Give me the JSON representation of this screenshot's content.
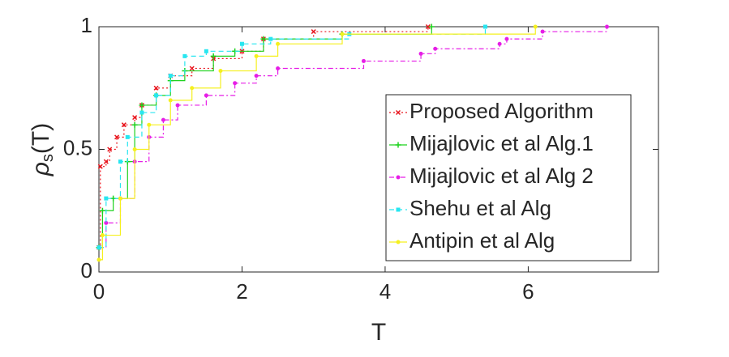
{
  "chart_data": {
    "type": "line",
    "step": true,
    "xlabel": "T",
    "ylabel": "ρ",
    "ylabel_sub": "s",
    "ylabel_tail": "(T)",
    "xlim": [
      0,
      7.82
    ],
    "ylim": [
      0,
      1
    ],
    "xticks": [
      0,
      2,
      4,
      6
    ],
    "yticks": [
      0,
      {
        "value": 0.5,
        "label": "0.5"
      },
      1
    ],
    "legend": "lower right",
    "series": [
      {
        "name": "Proposed Algorithm",
        "color": "#e8141c",
        "linestyle": "dotted",
        "marker": "x",
        "x": [
          0,
          0.02,
          0.1,
          0.15,
          0.25,
          0.35,
          0.5,
          0.6,
          0.8,
          1.0,
          1.3,
          1.6,
          2.0,
          2.3,
          3.0,
          4.6
        ],
        "values": [
          0.1,
          0.43,
          0.45,
          0.5,
          0.55,
          0.6,
          0.63,
          0.68,
          0.75,
          0.8,
          0.83,
          0.87,
          0.9,
          0.95,
          0.98,
          1.0
        ]
      },
      {
        "name": "Mijajlovic et al Alg.1",
        "color": "#1ed21e",
        "linestyle": "solid",
        "marker": "plus",
        "x": [
          0,
          0.05,
          0.2,
          0.4,
          0.5,
          0.6,
          0.8,
          1.0,
          1.2,
          1.6,
          1.9,
          2.3,
          3.4,
          4.65
        ],
        "values": [
          0.1,
          0.25,
          0.3,
          0.45,
          0.6,
          0.68,
          0.72,
          0.78,
          0.82,
          0.88,
          0.9,
          0.95,
          0.97,
          1.0
        ]
      },
      {
        "name": "Mijajlovic et al Alg 2",
        "color": "#e61ee6",
        "linestyle": "dashdot",
        "marker": "dot",
        "x": [
          0,
          0.1,
          0.3,
          0.5,
          0.7,
          0.9,
          1.1,
          1.5,
          1.9,
          2.2,
          2.5,
          3.7,
          4.5,
          4.7,
          5.6,
          5.7,
          6.2,
          7.1
        ],
        "values": [
          0.1,
          0.2,
          0.3,
          0.45,
          0.55,
          0.62,
          0.68,
          0.72,
          0.77,
          0.8,
          0.83,
          0.86,
          0.89,
          0.91,
          0.93,
          0.95,
          0.98,
          1.0
        ]
      },
      {
        "name": "Shehu et al Alg",
        "color": "#28e6f0",
        "linestyle": "dashed",
        "marker": "square",
        "x": [
          0,
          0.1,
          0.3,
          0.4,
          0.6,
          0.8,
          1.0,
          1.2,
          1.5,
          2.0,
          2.4,
          3.5,
          5.4
        ],
        "values": [
          0.1,
          0.3,
          0.45,
          0.55,
          0.65,
          0.72,
          0.8,
          0.88,
          0.9,
          0.93,
          0.95,
          0.97,
          1.0
        ]
      },
      {
        "name": "Antipin et al Alg",
        "color": "#f5f01e",
        "linestyle": "solid",
        "marker": "dot",
        "x": [
          0,
          0.05,
          0.3,
          0.5,
          0.7,
          1.0,
          1.3,
          1.7,
          2.2,
          2.5,
          3.4,
          6.1
        ],
        "values": [
          0.05,
          0.15,
          0.3,
          0.5,
          0.6,
          0.7,
          0.75,
          0.82,
          0.88,
          0.93,
          0.97,
          1.0
        ]
      }
    ]
  }
}
